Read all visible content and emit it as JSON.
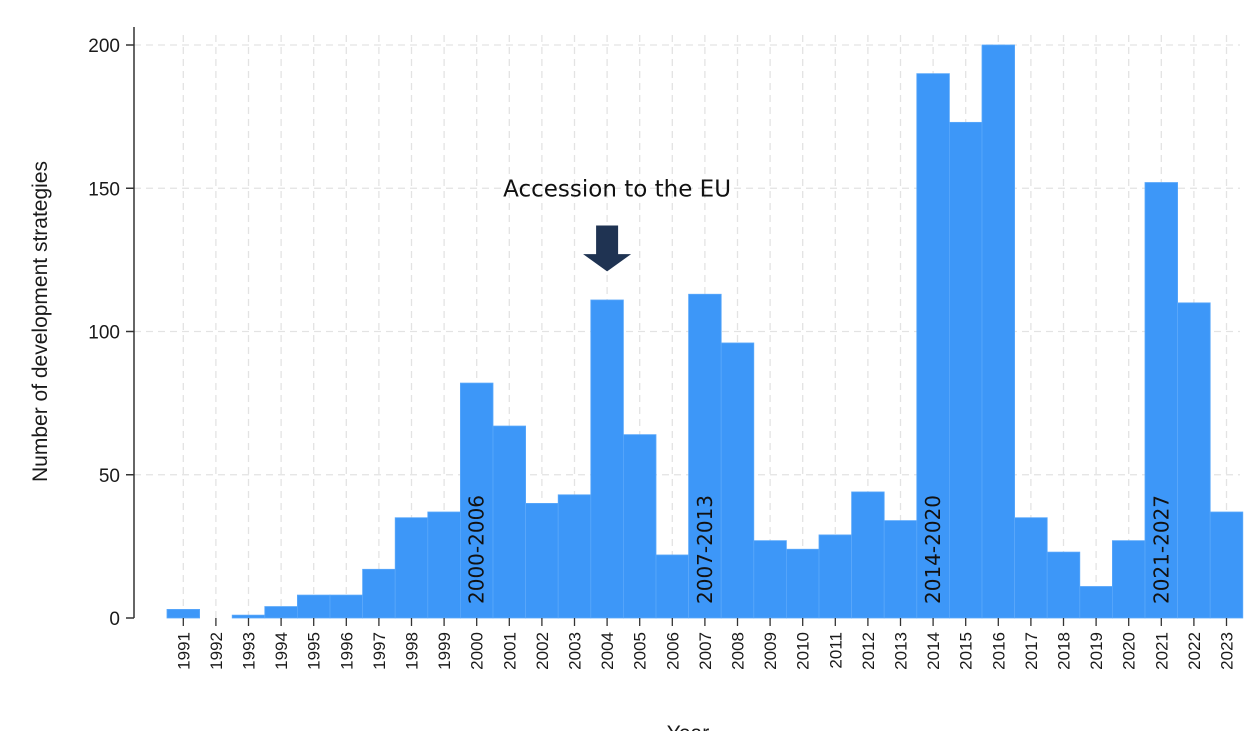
{
  "chart_data": {
    "type": "bar",
    "xlabel": "Year",
    "ylabel": "Number of development strategies",
    "ylim": [
      0,
      200
    ],
    "yticks": [
      0,
      50,
      100,
      150,
      200
    ],
    "grid": true,
    "categories": [
      "1991",
      "1992",
      "1993",
      "1994",
      "1995",
      "1996",
      "1997",
      "1998",
      "1999",
      "2000",
      "2001",
      "2002",
      "2003",
      "2004",
      "2005",
      "2006",
      "2007",
      "2008",
      "2009",
      "2010",
      "2011",
      "2012",
      "2013",
      "2014",
      "2015",
      "2016",
      "2017",
      "2018",
      "2019",
      "2020",
      "2021",
      "2022",
      "2023"
    ],
    "values": [
      3,
      0,
      1,
      4,
      8,
      8,
      17,
      35,
      37,
      82,
      67,
      40,
      43,
      111,
      64,
      22,
      113,
      96,
      27,
      24,
      29,
      44,
      34,
      190,
      173,
      200,
      35,
      23,
      11,
      27,
      152,
      110,
      37
    ],
    "period_labels": [
      {
        "text": "2000-2006",
        "year": "2000"
      },
      {
        "text": "2007-2013",
        "year": "2007"
      },
      {
        "text": "2014-2020",
        "year": "2014"
      },
      {
        "text": "2021-2027",
        "year": "2021"
      }
    ],
    "annotation": {
      "text": "Accession to the EU",
      "year": "2004",
      "marker": "down-arrow-icon"
    },
    "colors": {
      "bar": "#3d97f8",
      "bar_edge": "#2f86e8",
      "grid": "#e3e3e3",
      "arrow": "#1f3352",
      "axis": "#333333"
    }
  }
}
